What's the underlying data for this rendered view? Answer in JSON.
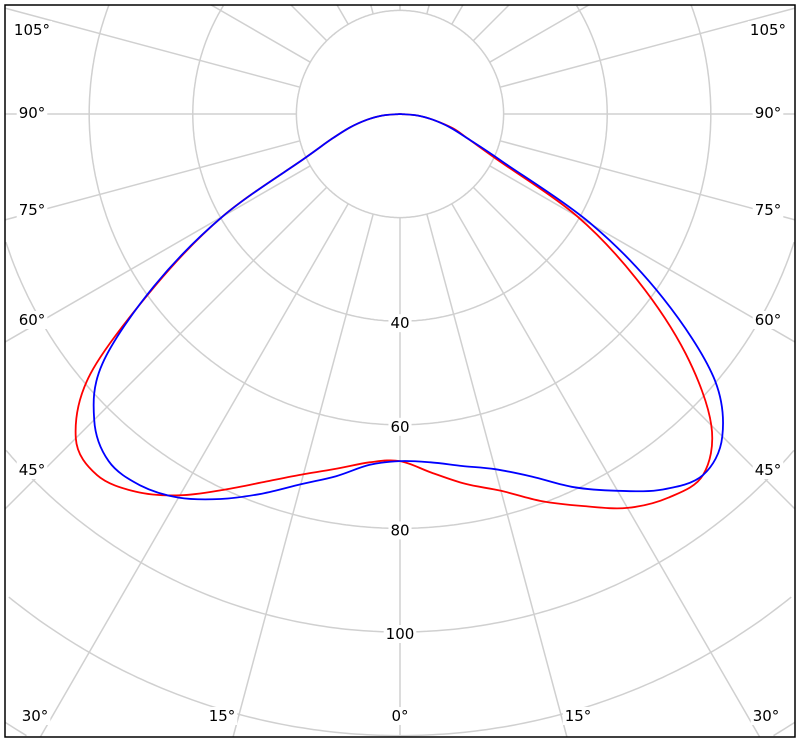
{
  "chart_data": {
    "type": "polar-line",
    "title": "",
    "angle_unit": "degrees",
    "zero_direction": "down",
    "radial_range": [
      0,
      160
    ],
    "radial_grid": [
      20,
      40,
      60,
      80,
      100,
      120,
      140,
      160
    ],
    "radial_tick_labels": [
      "40",
      "60",
      "80",
      "100"
    ],
    "radial_tick_values": [
      40,
      60,
      80,
      100
    ],
    "angle_grid_step": 15,
    "angle_tick_labels": {
      "bottom": [
        "30°",
        "15°",
        "0°",
        "15°",
        "30°"
      ],
      "left": [
        "105°",
        "90°",
        "75°",
        "60°",
        "45°"
      ],
      "right": [
        "105°",
        "90°",
        "75°",
        "60°",
        "45°"
      ]
    },
    "grid": true,
    "angles": [
      0,
      5,
      10,
      15,
      20,
      25,
      30,
      35,
      40,
      45,
      50,
      55,
      60,
      65,
      70,
      75,
      80,
      85,
      90
    ],
    "series": [
      {
        "color": "#ff0000",
        "right": [
          67,
          69.5,
          72.5,
          75.3,
          79.5,
          83.5,
          87.8,
          90.4,
          91,
          85,
          72,
          56,
          39.5,
          20.5,
          14,
          10.5,
          6.5,
          3.5,
          0
        ],
        "left": [
          67,
          67.5,
          69.5,
          72,
          75.5,
          80,
          85,
          89,
          91,
          88.5,
          78,
          57.5,
          39.5,
          20.5,
          14,
          10,
          6.5,
          3.5,
          0
        ]
      },
      {
        "color": "#0000ff",
        "right": [
          67,
          67.5,
          69,
          71,
          74.5,
          79.5,
          84,
          88.5,
          91,
          88,
          79,
          62,
          43,
          22,
          14,
          10,
          6.5,
          3.5,
          0
        ],
        "left": [
          67,
          68,
          71,
          74,
          78,
          82,
          85.5,
          87.5,
          87.5,
          83.5,
          75,
          58,
          39.5,
          20.5,
          14,
          10,
          6.5,
          3.5,
          0
        ]
      }
    ]
  }
}
